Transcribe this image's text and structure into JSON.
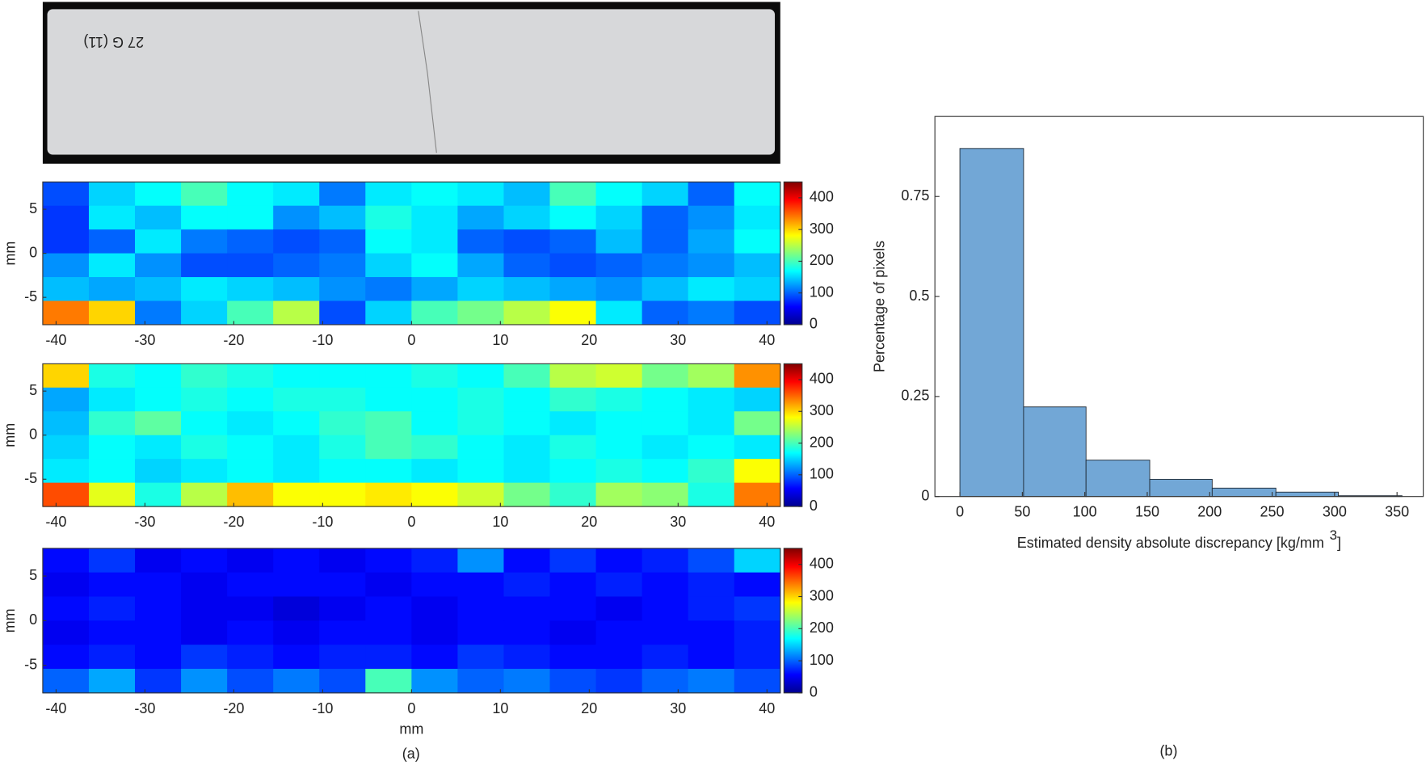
{
  "figure": {
    "photo_label": "27 G (11)",
    "captions": [
      "(a)",
      "(b)"
    ]
  },
  "chart_data": [
    {
      "type": "heatmap",
      "ylabel": "mm",
      "colormap": "jet",
      "xlim": [
        -41.5,
        41.5
      ],
      "ylim": [
        -8.1,
        8.1
      ],
      "clim": [
        0,
        450
      ],
      "xticks": [
        -40,
        -30,
        -20,
        -10,
        0,
        10,
        20,
        30,
        40
      ],
      "yticks": [
        -5,
        0,
        5
      ],
      "cticks": [
        0,
        100,
        200,
        300,
        400
      ],
      "values": [
        [
          90,
          150,
          170,
          200,
          170,
          160,
          110,
          160,
          170,
          160,
          140,
          200,
          170,
          150,
          100,
          170
        ],
        [
          80,
          160,
          140,
          170,
          170,
          120,
          140,
          180,
          160,
          130,
          150,
          170,
          150,
          100,
          120,
          160
        ],
        [
          80,
          100,
          160,
          110,
          100,
          90,
          100,
          170,
          160,
          100,
          90,
          100,
          140,
          100,
          130,
          170
        ],
        [
          120,
          160,
          120,
          90,
          90,
          100,
          110,
          150,
          170,
          130,
          100,
          90,
          100,
          110,
          120,
          140
        ],
        [
          140,
          130,
          140,
          160,
          150,
          140,
          120,
          110,
          130,
          150,
          140,
          130,
          120,
          140,
          160,
          150
        ],
        [
          340,
          300,
          110,
          150,
          200,
          250,
          90,
          150,
          200,
          220,
          250,
          280,
          160,
          100,
          110,
          90
        ]
      ]
    },
    {
      "type": "heatmap",
      "ylabel": "mm",
      "colormap": "jet",
      "xlim": [
        -41.5,
        41.5
      ],
      "ylim": [
        -8.1,
        8.1
      ],
      "clim": [
        0,
        450
      ],
      "xticks": [
        -40,
        -30,
        -20,
        -10,
        0,
        10,
        20,
        30,
        40
      ],
      "yticks": [
        -5,
        0,
        5
      ],
      "cticks": [
        0,
        100,
        200,
        300,
        400
      ],
      "values": [
        [
          300,
          180,
          170,
          190,
          180,
          170,
          170,
          170,
          180,
          170,
          200,
          250,
          260,
          220,
          240,
          330
        ],
        [
          130,
          160,
          170,
          180,
          170,
          180,
          180,
          170,
          170,
          180,
          170,
          190,
          180,
          170,
          160,
          150
        ],
        [
          140,
          190,
          210,
          170,
          160,
          170,
          190,
          200,
          170,
          180,
          170,
          160,
          170,
          170,
          160,
          220
        ],
        [
          150,
          170,
          160,
          180,
          170,
          160,
          180,
          200,
          190,
          170,
          160,
          180,
          170,
          160,
          170,
          160
        ],
        [
          160,
          170,
          150,
          160,
          170,
          160,
          170,
          170,
          160,
          170,
          160,
          170,
          180,
          170,
          190,
          280
        ],
        [
          360,
          270,
          180,
          250,
          310,
          280,
          280,
          290,
          280,
          260,
          220,
          190,
          240,
          230,
          180,
          340
        ]
      ]
    },
    {
      "type": "heatmap",
      "ylabel": "mm",
      "xlabel": "mm",
      "colormap": "jet",
      "xlim": [
        -41.5,
        41.5
      ],
      "ylim": [
        -8.1,
        8.1
      ],
      "clim": [
        0,
        450
      ],
      "xticks": [
        -40,
        -30,
        -20,
        -10,
        0,
        10,
        20,
        30,
        40
      ],
      "yticks": [
        -5,
        0,
        5
      ],
      "cticks": [
        0,
        100,
        200,
        300,
        400
      ],
      "values": [
        [
          60,
          80,
          50,
          60,
          50,
          60,
          50,
          60,
          70,
          120,
          60,
          80,
          60,
          70,
          90,
          150
        ],
        [
          50,
          60,
          60,
          50,
          60,
          60,
          60,
          50,
          60,
          60,
          70,
          60,
          70,
          60,
          70,
          60
        ],
        [
          60,
          70,
          60,
          50,
          50,
          40,
          50,
          60,
          50,
          60,
          60,
          60,
          50,
          60,
          70,
          80
        ],
        [
          50,
          60,
          60,
          50,
          60,
          50,
          60,
          60,
          50,
          60,
          60,
          50,
          60,
          60,
          60,
          70
        ],
        [
          60,
          70,
          60,
          80,
          70,
          60,
          70,
          70,
          60,
          80,
          70,
          60,
          60,
          70,
          60,
          70
        ],
        [
          100,
          130,
          80,
          120,
          90,
          110,
          90,
          200,
          120,
          100,
          110,
          90,
          80,
          100,
          110,
          90
        ]
      ]
    },
    {
      "type": "histogram",
      "color": "#72a7d6",
      "edgecolor": "#1f2a36",
      "xlabel": "Estimated density absolute discrepancy [kg/mm",
      "xlabel_sup": "3",
      "xlabel_end": "]",
      "ylabel": "Percentage of pixels",
      "bins": [
        0,
        51,
        101,
        152,
        202,
        253,
        303,
        354
      ],
      "values": [
        0.87,
        0.224,
        0.091,
        0.043,
        0.021,
        0.011,
        0.002
      ],
      "xlim": [
        -20,
        371
      ],
      "ylim": [
        0,
        0.95
      ],
      "xticks": [
        0,
        50,
        100,
        150,
        200,
        250,
        300,
        350
      ],
      "yticks": [
        0,
        0.25,
        0.5,
        0.75
      ]
    }
  ]
}
